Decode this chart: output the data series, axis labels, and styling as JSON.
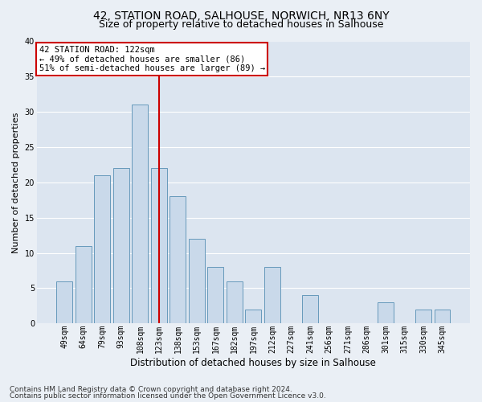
{
  "title1": "42, STATION ROAD, SALHOUSE, NORWICH, NR13 6NY",
  "title2": "Size of property relative to detached houses in Salhouse",
  "xlabel": "Distribution of detached houses by size in Salhouse",
  "ylabel": "Number of detached properties",
  "footer1": "Contains HM Land Registry data © Crown copyright and database right 2024.",
  "footer2": "Contains public sector information licensed under the Open Government Licence v3.0.",
  "categories": [
    "49sqm",
    "64sqm",
    "79sqm",
    "93sqm",
    "108sqm",
    "123sqm",
    "138sqm",
    "153sqm",
    "167sqm",
    "182sqm",
    "197sqm",
    "212sqm",
    "227sqm",
    "241sqm",
    "256sqm",
    "271sqm",
    "286sqm",
    "301sqm",
    "315sqm",
    "330sqm",
    "345sqm"
  ],
  "values": [
    6,
    11,
    21,
    22,
    31,
    22,
    18,
    12,
    8,
    6,
    2,
    8,
    0,
    4,
    0,
    0,
    0,
    3,
    0,
    2,
    2
  ],
  "bar_color": "#c9d9ea",
  "bar_edge_color": "#6699bb",
  "highlight_index": 5,
  "highlight_line_color": "#cc0000",
  "annotation_text": "42 STATION ROAD: 122sqm\n← 49% of detached houses are smaller (86)\n51% of semi-detached houses are larger (89) →",
  "annotation_box_color": "#ffffff",
  "annotation_box_edge_color": "#cc0000",
  "ylim": [
    0,
    40
  ],
  "yticks": [
    0,
    5,
    10,
    15,
    20,
    25,
    30,
    35,
    40
  ],
  "bg_color": "#eaeff5",
  "plot_bg_color": "#dce5f0",
  "grid_color": "#ffffff",
  "title1_fontsize": 10,
  "title2_fontsize": 9,
  "xlabel_fontsize": 8.5,
  "ylabel_fontsize": 8,
  "tick_fontsize": 7,
  "footer_fontsize": 6.5,
  "ann_fontsize": 7.5
}
